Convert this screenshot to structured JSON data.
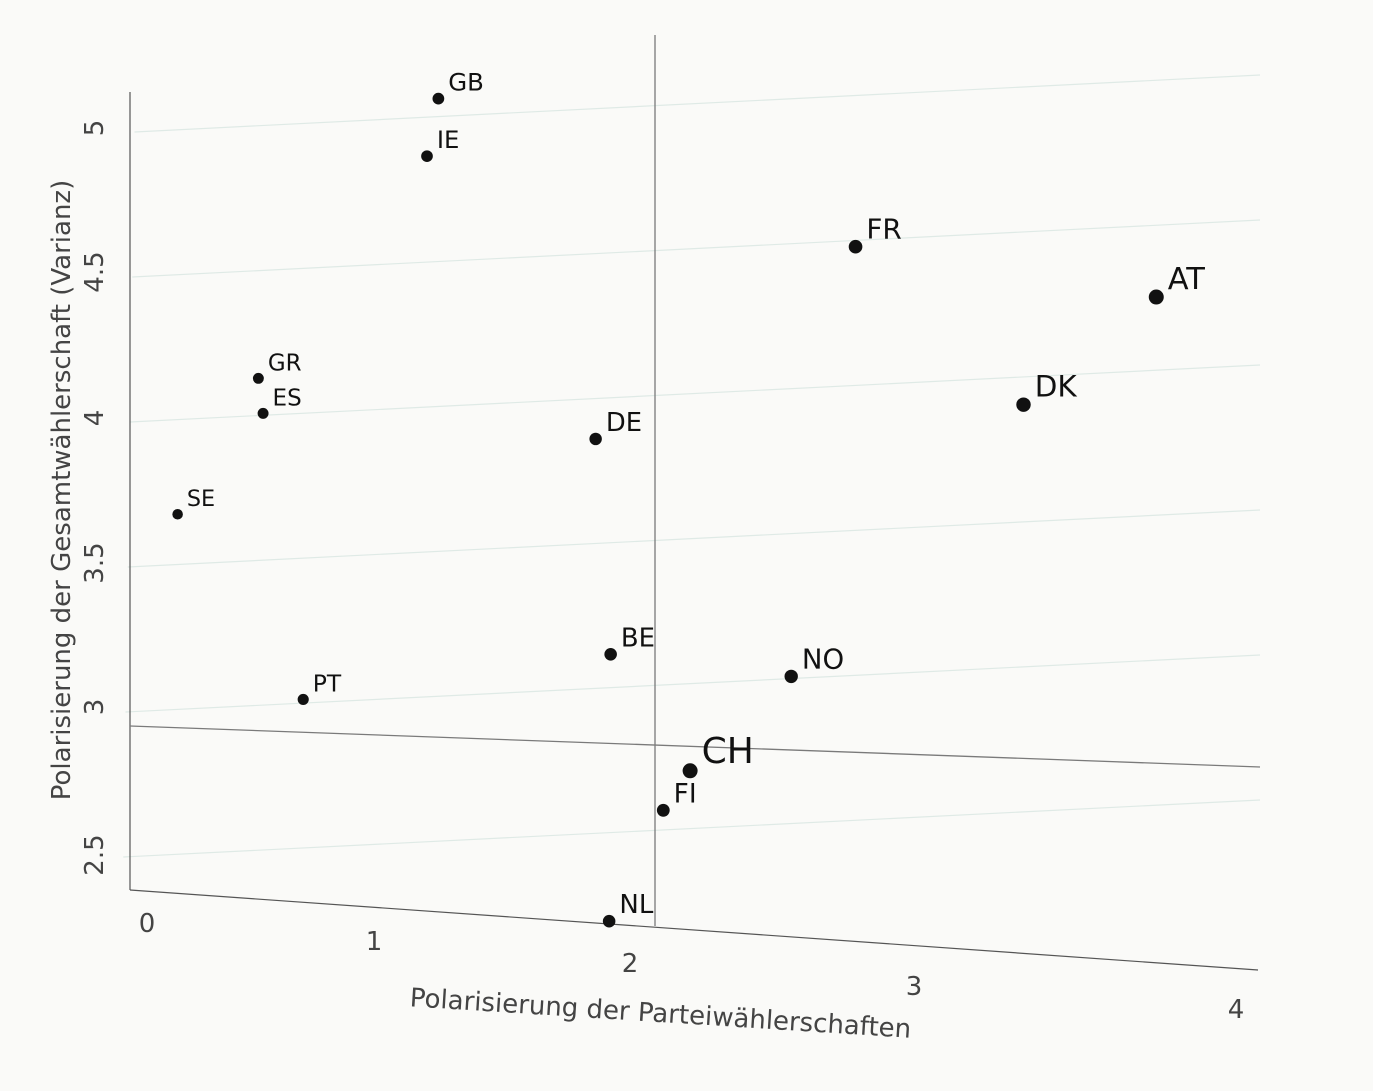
{
  "chart_data": {
    "type": "scatter",
    "xlabel": "Polarisierung der Parteiwählerschaften",
    "ylabel": "Polarisierung der Gesamtwählerschaft (Varianz)",
    "xlim": [
      0,
      4
    ],
    "ylim": [
      2.3,
      5.3
    ],
    "x_ticks": [
      "0",
      "1",
      "2",
      "3",
      "4"
    ],
    "y_ticks": [
      "2.5",
      "3",
      "3.5",
      "4",
      "4.5",
      "5"
    ],
    "reference_lines": {
      "x": 2.1,
      "y": 2.87
    },
    "grid": true,
    "points": [
      {
        "label": "GB",
        "x": 1.1,
        "y": 5.15
      },
      {
        "label": "IE",
        "x": 1.06,
        "y": 4.95
      },
      {
        "label": "FR",
        "x": 2.7,
        "y": 4.7
      },
      {
        "label": "AT",
        "x": 3.85,
        "y": 4.57
      },
      {
        "label": "DK",
        "x": 3.35,
        "y": 4.18
      },
      {
        "label": "GR",
        "x": 0.43,
        "y": 4.16
      },
      {
        "label": "ES",
        "x": 0.45,
        "y": 4.04
      },
      {
        "label": "DE",
        "x": 1.72,
        "y": 4.0
      },
      {
        "label": "SE",
        "x": 0.13,
        "y": 3.68
      },
      {
        "label": "BE",
        "x": 1.79,
        "y": 3.26
      },
      {
        "label": "NO",
        "x": 2.48,
        "y": 3.21
      },
      {
        "label": "PT",
        "x": 0.62,
        "y": 3.06
      },
      {
        "label": "CH",
        "x": 2.1,
        "y": 2.87
      },
      {
        "label": "FI",
        "x": 2.0,
        "y": 2.73
      },
      {
        "label": "NL",
        "x": 1.8,
        "y": 2.34
      }
    ]
  }
}
